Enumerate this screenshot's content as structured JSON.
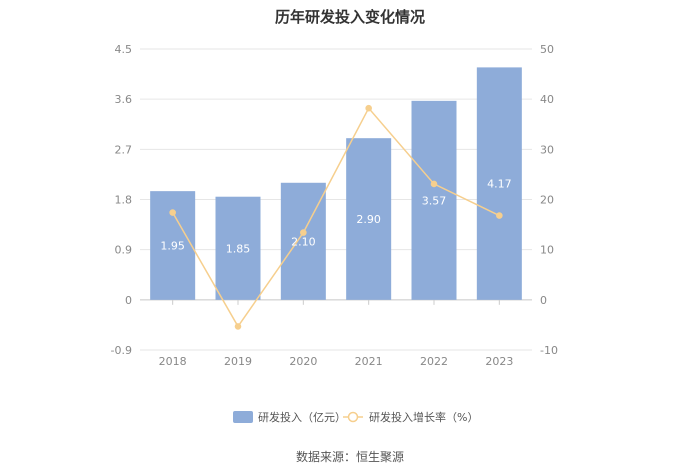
{
  "chart_data": {
    "type": "bar",
    "title": "历年研发投入变化情况",
    "categories": [
      "2018",
      "2019",
      "2020",
      "2021",
      "2022",
      "2023"
    ],
    "series": [
      {
        "name": "研发投入（亿元）",
        "type": "bar",
        "axis": "left",
        "values": [
          1.95,
          1.85,
          2.1,
          2.9,
          3.57,
          4.17
        ],
        "labels": [
          "1.95",
          "1.85",
          "2.10",
          "2.90",
          "3.57",
          "4.17"
        ],
        "color": "#8eacd9"
      },
      {
        "name": "研发投入增长率（%）",
        "type": "line",
        "axis": "right",
        "values": [
          17.4,
          -5.3,
          13.4,
          38.2,
          23.1,
          16.8
        ],
        "color": "#f6cf8e"
      }
    ],
    "y_left": {
      "range": [
        -0.9,
        4.5
      ],
      "ticks": [
        "-0.9",
        "0",
        "0.9",
        "1.8",
        "2.7",
        "3.6",
        "4.5"
      ]
    },
    "y_right": {
      "range": [
        -10,
        50
      ],
      "ticks": [
        "-10",
        "0",
        "10",
        "20",
        "30",
        "40",
        "50"
      ]
    },
    "grid": true,
    "legend_position": "bottom"
  },
  "source": "数据来源：恒生聚源"
}
